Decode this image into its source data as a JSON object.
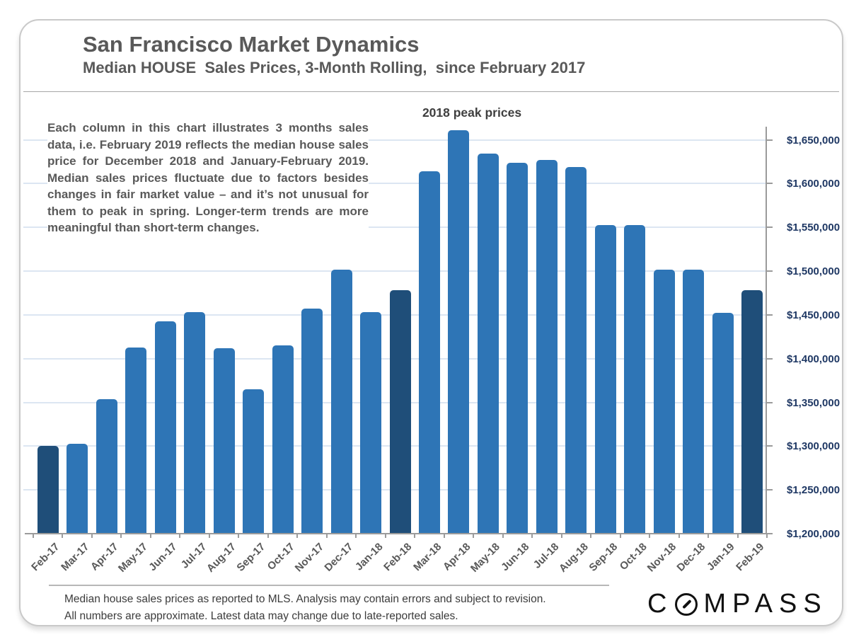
{
  "page": {
    "title": "San Francisco Market Dynamics",
    "subtitle": "Median HOUSE  Sales Prices, 3-Month Rolling,  since February 2017"
  },
  "annotation_paragraph": "Each column in this chart illustrates 3 months sales data, i.e. February 2019 reflects the median house sales price for December 2018 and January-February 2019. Median sales prices fluctuate due to factors besides changes in fair market value – and it’s not unusual for them to peak in spring. Longer-term trends are more meaningful than short-term changes.",
  "chart_data": {
    "type": "bar",
    "title": "San Francisco Market Dynamics",
    "subtitle": "Median HOUSE Sales Prices, 3-Month Rolling, since February 2017",
    "annotation": "2018 peak prices",
    "categories": [
      "Feb-17",
      "Mar-17",
      "Apr-17",
      "May-17",
      "Jun-17",
      "Jul-17",
      "Aug-17",
      "Sep-17",
      "Oct-17",
      "Nov-17",
      "Dec-17",
      "Jan-18",
      "Feb-18",
      "Mar-18",
      "Apr-18",
      "May-18",
      "Jun-18",
      "Jul-18",
      "Aug-18",
      "Sep-18",
      "Oct-18",
      "Nov-18",
      "Dec-18",
      "Jan-19",
      "Feb-19"
    ],
    "values": [
      1300000,
      1303000,
      1354000,
      1413000,
      1443000,
      1453000,
      1412000,
      1365000,
      1415000,
      1457000,
      1502000,
      1453000,
      1478000,
      1614000,
      1661000,
      1634000,
      1624000,
      1627000,
      1619000,
      1553000,
      1553000,
      1502000,
      1502000,
      1452000,
      1478000
    ],
    "highlighted_indices": [
      0,
      12,
      24
    ],
    "bar_color": "#2e75b6",
    "highlight_color": "#1f4e79",
    "xlabel": "",
    "ylabel": "",
    "ylim": [
      1200000,
      1665000
    ],
    "ytick_step": 50000,
    "ytick_labels": [
      "$1,200,000",
      "$1,250,000",
      "$1,300,000",
      "$1,350,000",
      "$1,400,000",
      "$1,450,000",
      "$1,500,000",
      "$1,550,000",
      "$1,600,000",
      "$1,650,000"
    ],
    "grid": true,
    "y_axis_side": "right",
    "legend_position": "none"
  },
  "footer": {
    "disclaimer_line1": "Median house sales prices as reported to MLS.  Analysis may contain errors and subject to revision.",
    "disclaimer_line2": "All numbers are approximate. Latest data may change due to late-reported sales.",
    "logo_text": "COMPASS",
    "logo_prefix": "C",
    "logo_suffix": "MPASS"
  }
}
